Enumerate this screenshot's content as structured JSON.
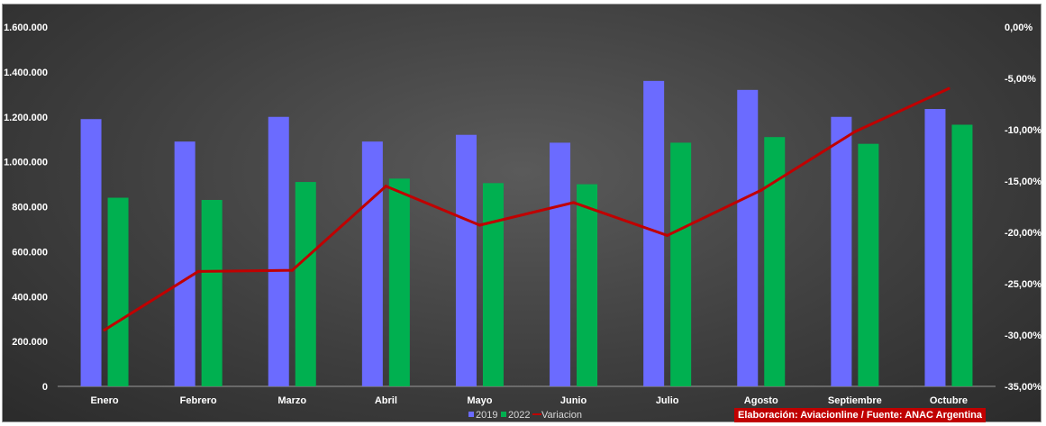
{
  "chart_data": {
    "type": "bar",
    "categories": [
      "Enero",
      "Febrero",
      "Marzo",
      "Abril",
      "Mayo",
      "Junio",
      "Julio",
      "Agosto",
      "Septiembre",
      "Octubre"
    ],
    "series": [
      {
        "name": "2019",
        "type": "bar",
        "axis": "left",
        "color": "#6b6bff",
        "values": [
          1190000,
          1090000,
          1200000,
          1090000,
          1120000,
          1085000,
          1360000,
          1320000,
          1200000,
          1235000
        ]
      },
      {
        "name": "2022",
        "type": "bar",
        "axis": "left",
        "color": "#00b050",
        "values": [
          840000,
          830000,
          910000,
          925000,
          905000,
          900000,
          1085000,
          1110000,
          1080000,
          1165000
        ]
      },
      {
        "name": "Variacion",
        "type": "line",
        "axis": "right",
        "color": "#c00000",
        "values": [
          -29.5,
          -23.8,
          -23.7,
          -15.5,
          -19.3,
          -17.1,
          -20.3,
          -15.9,
          -10.2,
          -6.0
        ]
      }
    ],
    "y_left": {
      "min": 0,
      "max": 1600000,
      "step": 200000,
      "tick_labels": [
        "0",
        "200.000",
        "400.000",
        "600.000",
        "800.000",
        "1.000.000",
        "1.200.000",
        "1.400.000",
        "1.600.000"
      ]
    },
    "y_right": {
      "min": -35,
      "max": 0,
      "step": 5,
      "unit": "%",
      "tick_labels": [
        "-35,00%",
        "-30,00%",
        "-25,00%",
        "-20,00%",
        "-15,00%",
        "-10,00%",
        "-5,00%",
        "0,00%"
      ]
    },
    "legend": {
      "position": "bottom",
      "labels": [
        "2019",
        "2022",
        "Variacion"
      ]
    },
    "grid": false
  },
  "credit": "Elaboración: Aviacionline / Fuente: ANAC Argentina"
}
